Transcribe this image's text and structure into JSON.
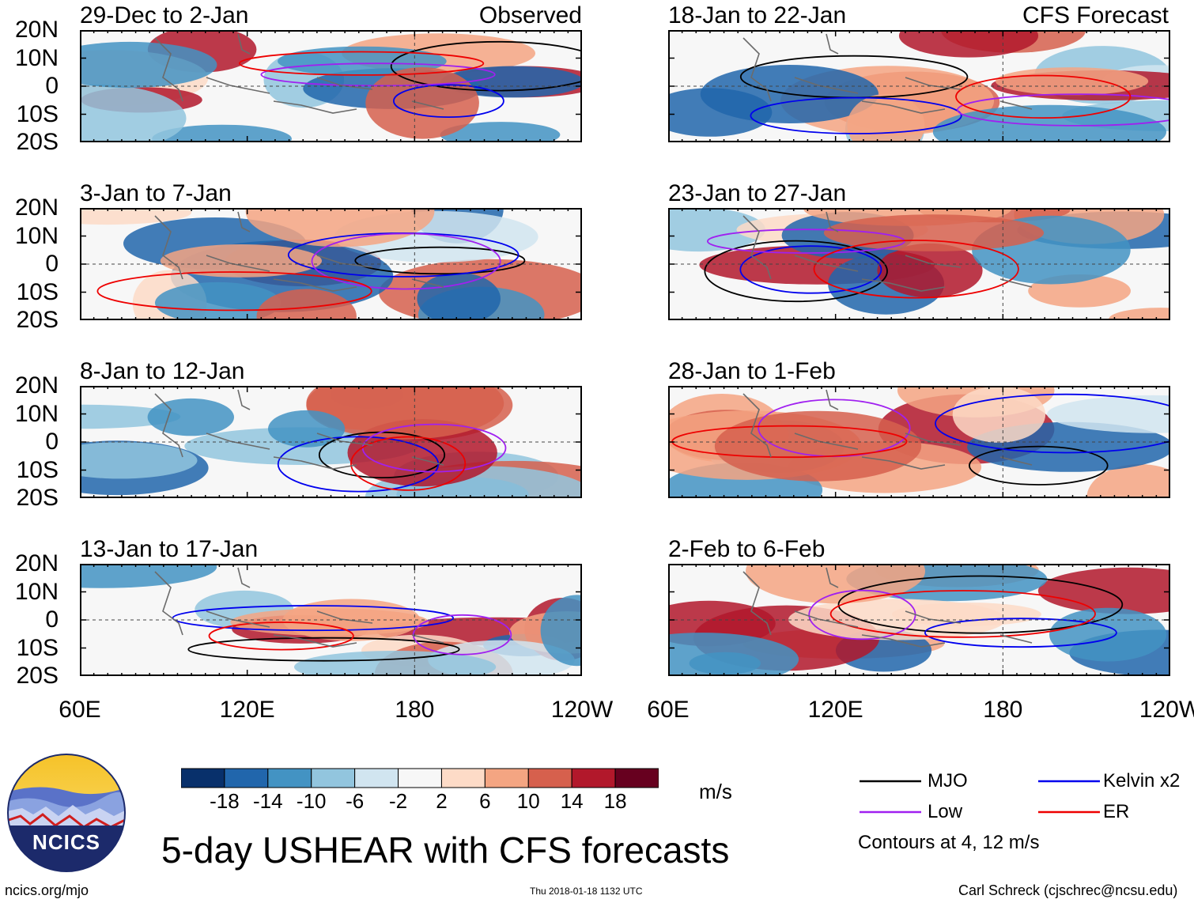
{
  "chart_data": {
    "type": "heatmap",
    "title": "5-day USHEAR with CFS forecasts",
    "variable": "USHEAR",
    "units": "m/s",
    "x_axis": {
      "ticks": [
        "60E",
        "120E",
        "180",
        "120W"
      ],
      "range": [
        "60E",
        "120W"
      ]
    },
    "y_axis": {
      "ticks": [
        "20N",
        "10N",
        "0",
        "10S",
        "20S"
      ],
      "range": [
        "20S",
        "20N"
      ]
    },
    "colorbar": {
      "labels": [
        "-18",
        "-14",
        "-10",
        "-6",
        "-2",
        "2",
        "6",
        "10",
        "14",
        "18"
      ],
      "colors": [
        "#08306b",
        "#2166ac",
        "#4393c3",
        "#92c5de",
        "#d1e5f0",
        "#f7f7f7",
        "#fddbc7",
        "#f4a582",
        "#d6604d",
        "#b2182b",
        "#67001f"
      ]
    },
    "column_labels": {
      "left": "Observed",
      "right": "CFS Forecast"
    },
    "panels": [
      {
        "title": "29-Dec to 2-Jan",
        "source": "Observed"
      },
      {
        "title": "3-Jan to 7-Jan",
        "source": "Observed"
      },
      {
        "title": "8-Jan to 12-Jan",
        "source": "Observed"
      },
      {
        "title": "13-Jan to 17-Jan",
        "source": "Observed"
      },
      {
        "title": "18-Jan to 22-Jan",
        "source": "CFS Forecast"
      },
      {
        "title": "23-Jan to 27-Jan",
        "source": "CFS Forecast"
      },
      {
        "title": "28-Jan to 1-Feb",
        "source": "CFS Forecast"
      },
      {
        "title": "2-Feb to 6-Feb",
        "source": "CFS Forecast"
      }
    ],
    "legend": [
      {
        "label": "MJO",
        "color": "#000000"
      },
      {
        "label": "Kelvin x2",
        "color": "#0000ee"
      },
      {
        "label": "Low",
        "color": "#a020f0"
      },
      {
        "label": "ER",
        "color": "#ee0000"
      }
    ],
    "contour_note": "Contours at 4, 12 m/s"
  },
  "footer": {
    "logo_text": "NCICS",
    "site": "ncics.org/mjo",
    "timestamp": "Thu 2018-01-18 1132 UTC",
    "credit": "Carl Schreck (cjschrec@ncsu.edu)"
  }
}
